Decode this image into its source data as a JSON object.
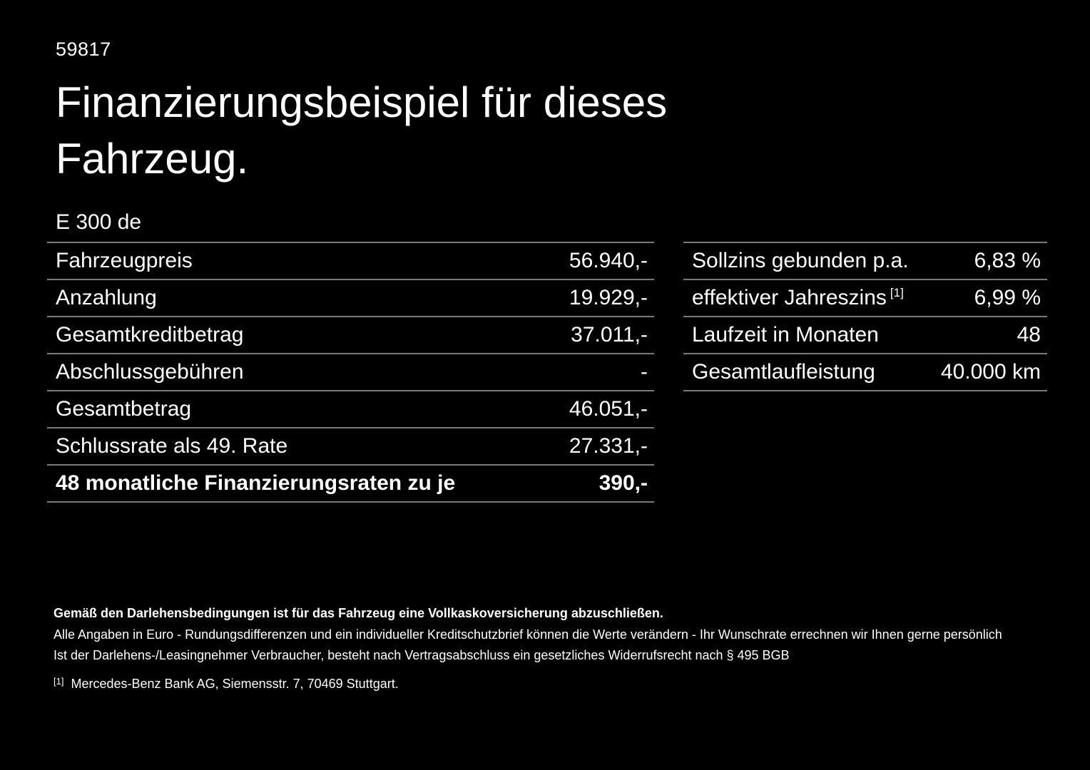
{
  "page": {
    "vehicle_code": "59817",
    "title": "Finanzierungsbeispiel für dieses Fahrzeug.",
    "model": "E 300 de"
  },
  "colors": {
    "background": "#000000",
    "text": "#ffffff",
    "divider": "#7a7a7a"
  },
  "left_table": {
    "rows": [
      {
        "label": "Fahrzeugpreis",
        "value": "56.940,-"
      },
      {
        "label": "Anzahlung",
        "value": "19.929,-"
      },
      {
        "label": "Gesamtkreditbetrag",
        "value": "37.011,-"
      },
      {
        "label": "Abschlussgebühren",
        "value": "-"
      },
      {
        "label": "Gesamtbetrag",
        "value": "46.051,-"
      },
      {
        "label": "Schlussrate als 49. Rate",
        "value": "27.331,-"
      },
      {
        "label": "48 monatliche Finanzierungsraten zu je",
        "value": "390,-"
      }
    ]
  },
  "right_table": {
    "rows": [
      {
        "label": "Sollzins gebunden p.a.",
        "sup": "",
        "value": "6,83 %"
      },
      {
        "label": "effektiver Jahreszins",
        "sup": "[1]",
        "value": "6,99 %"
      },
      {
        "label": "Laufzeit in Monaten",
        "sup": "",
        "value": "48"
      },
      {
        "label": "Gesamtlaufleistung",
        "sup": "",
        "value": "40.000 km"
      }
    ]
  },
  "footer": {
    "note_insurance": "Gemäß den Darlehensbedingungen ist für das Fahrzeug eine Vollkaskoversicherung abzuschließen.",
    "note_euro": "Alle Angaben in Euro - Rundungsdifferenzen und ein individueller Kreditschutzbrief können die Werte verändern - Ihr Wunschrate errechnen wir Ihnen gerne persönlich",
    "note_widerruf": "Ist der Darlehens-/Leasingnehmer Verbraucher, besteht nach Vertragsabschluss ein gesetzliches Widerrufsrecht nach § 495 BGB",
    "footnote_marker": "[1]",
    "footnote_text": "Mercedes-Benz Bank AG, Siemensstr. 7, 70469 Stuttgart."
  }
}
